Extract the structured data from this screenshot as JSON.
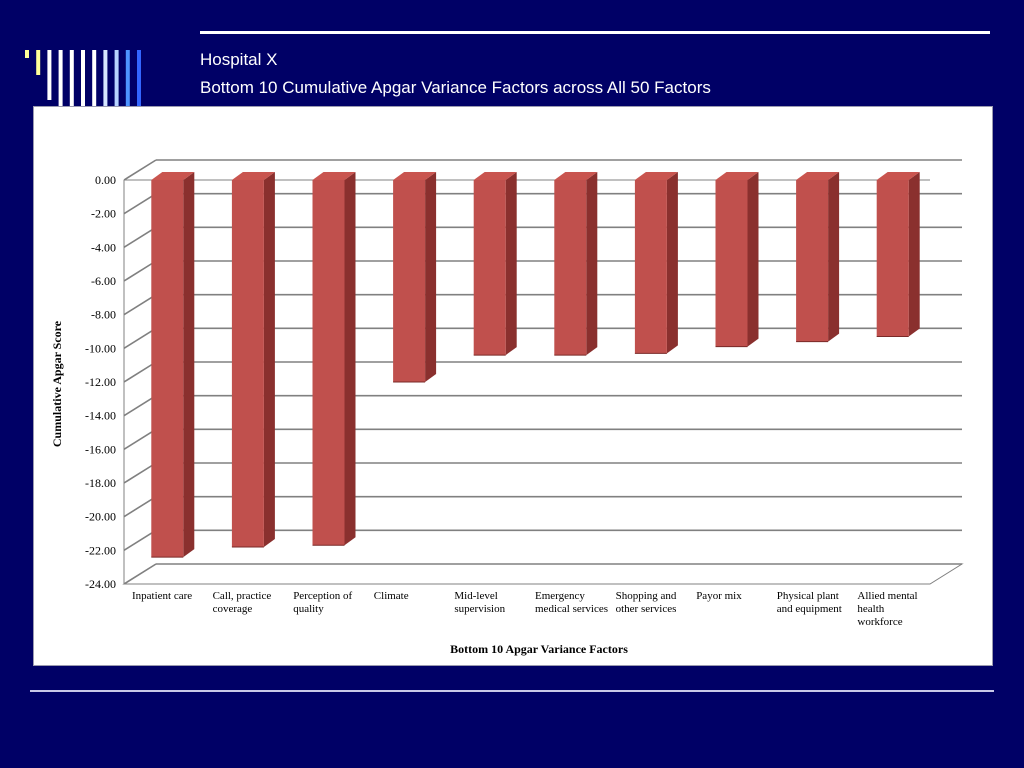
{
  "slide": {
    "title_line1": "Hospital X",
    "title_line2": "Bottom 10 Cumulative Apgar Variance Factors across All 50 Factors",
    "background_color": "#000066",
    "decoration_bar_colors": [
      "#ffff99",
      "#ffff99",
      "#ffffff",
      "#ffffff",
      "#ffffff",
      "#ffffff",
      "#ffffff",
      "#d6e6ff",
      "#b8d4ff",
      "#4d94ff",
      "#3366ff"
    ]
  },
  "chart_data": {
    "type": "bar",
    "style": "3d-column",
    "categories": [
      [
        "Inpatient care"
      ],
      [
        "Call, practice",
        "coverage"
      ],
      [
        "Perception of",
        "quality"
      ],
      [
        "Climate"
      ],
      [
        "Mid-level",
        "supervision"
      ],
      [
        "Emergency",
        "medical services"
      ],
      [
        "Shopping and",
        "other services"
      ],
      [
        "Payor mix"
      ],
      [
        "Physical plant",
        "and equipment"
      ],
      [
        "Allied mental",
        "health",
        "workforce"
      ]
    ],
    "values": [
      -22.4,
      -21.8,
      -21.7,
      -12.0,
      -10.4,
      -10.4,
      -10.3,
      -9.9,
      -9.6,
      -9.3
    ],
    "title": "",
    "xlabel": "Bottom 10 Apgar Variance Factors",
    "ylabel": "Cumulative Apgar Score",
    "ylim": [
      -24,
      0
    ],
    "yticks": [
      "0.00",
      "-2.00",
      "-4.00",
      "-6.00",
      "-8.00",
      "-10.00",
      "-12.00",
      "-14.00",
      "-16.00",
      "-18.00",
      "-20.00",
      "-22.00",
      "-24.00"
    ],
    "grid": true,
    "bar_color": "#c0504d",
    "bar_top_color": "#c9554f",
    "bar_side_color": "#8a302e"
  }
}
